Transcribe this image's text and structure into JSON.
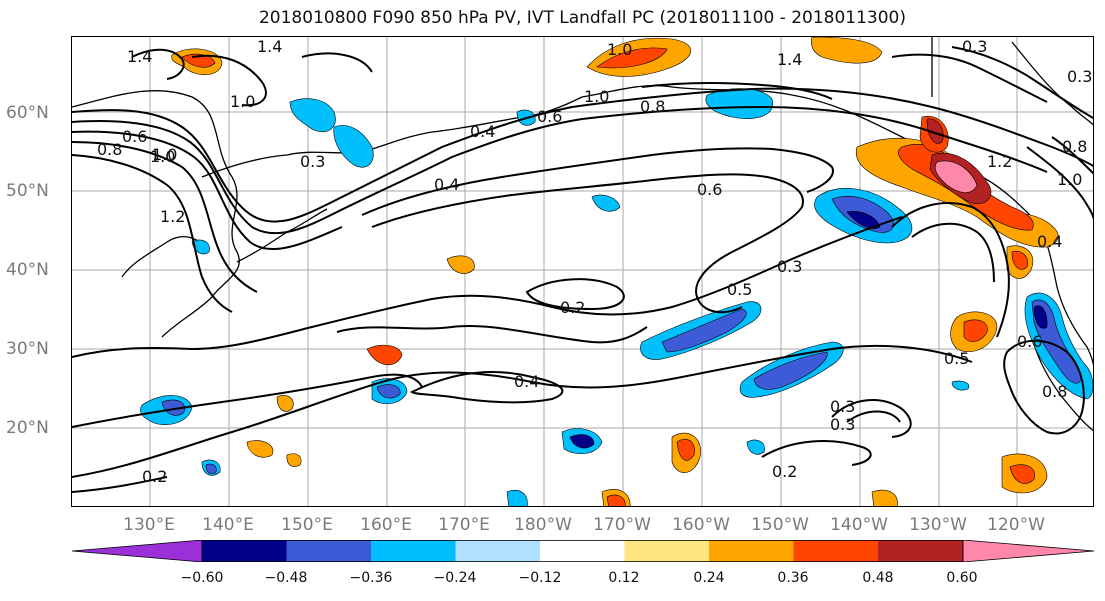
{
  "title": "2018010800 F090 850 hPa PV, IVT Landfall PC (2018011100 - 2018011300)",
  "map": {
    "lat_labels": [
      "60°N",
      "50°N",
      "40°N",
      "30°N",
      "20°N"
    ],
    "lon_labels": [
      "130°E",
      "140°E",
      "150°E",
      "160°E",
      "170°E",
      "180°W",
      "170°W",
      "160°W",
      "150°W",
      "140°W",
      "130°W",
      "120°W"
    ],
    "contour_labels": [
      "1.4",
      "1.4",
      "1.0",
      "1.0",
      "1.0",
      "1.4",
      "0.3",
      "1.0",
      "0.6",
      "0.8",
      "0.4",
      "0.6",
      "0.8",
      "1.0",
      "0.3",
      "1.2",
      "0.4",
      "0.6",
      "0.5",
      "0.3",
      "0.2",
      "0.4",
      "0.3",
      "0.3",
      "0.2",
      "0.2",
      "0.5",
      "0.6",
      "0.8",
      "0.4",
      "1.2",
      "1.0",
      "0.8",
      "0.3"
    ]
  },
  "colorbar": {
    "tick_labels": [
      "−0.60",
      "−0.48",
      "−0.36",
      "−0.24",
      "−0.12",
      "0.12",
      "0.24",
      "0.36",
      "0.48",
      "0.60"
    ],
    "colors": [
      "#9b30d9",
      "#00008b",
      "#3d5bd6",
      "#00bfff",
      "#b0e0ff",
      "#ffffff",
      "#ffe680",
      "#ffa500",
      "#ff4500",
      "#b22222",
      "#ff88aa"
    ]
  }
}
